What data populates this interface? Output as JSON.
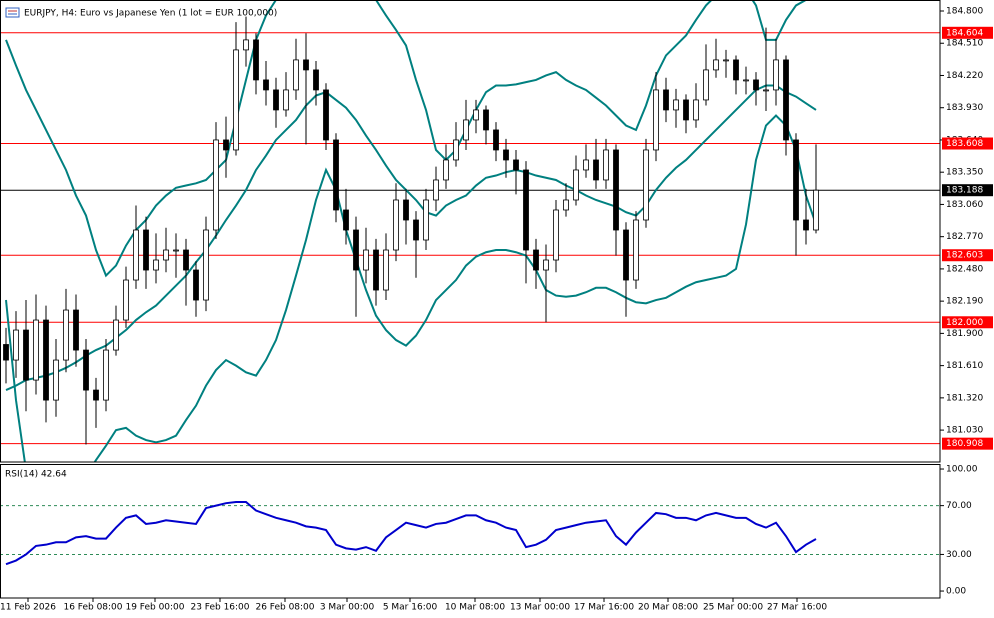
{
  "chart_data": [
    {
      "type": "candlestick",
      "title": "EURJPY, H4:  Euro vs Japanese Yen (1 lot = EUR 100,000)",
      "xlim": [
        -0.6,
        93.4
      ],
      "xticks": [
        {
          "value": 2.2,
          "label": "11 Feb 2026"
        },
        {
          "value": 8.7,
          "label": "16 Feb 08:00"
        },
        {
          "value": 14.9,
          "label": "19 Feb 00:00"
        },
        {
          "value": 21.4,
          "label": "23 Feb 16:00"
        },
        {
          "value": 27.9,
          "label": "26 Feb 08:00"
        },
        {
          "value": 34.1,
          "label": "3 Mar 00:00"
        },
        {
          "value": 40.4,
          "label": "5 Mar 16:00"
        },
        {
          "value": 46.9,
          "label": "10 Mar 08:00"
        },
        {
          "value": 53.4,
          "label": "13 Mar 00:00"
        },
        {
          "value": 59.8,
          "label": "17 Mar 16:00"
        },
        {
          "value": 66.2,
          "label": "20 Mar 08:00"
        },
        {
          "value": 72.7,
          "label": "25 Mar 00:00"
        },
        {
          "value": 79.1,
          "label": "27 Mar 16:00"
        }
      ],
      "ylim": [
        180.743,
        184.899
      ],
      "yticks": [
        {
          "value": 184.8,
          "label": "184.800"
        },
        {
          "value": 184.51,
          "label": "184.510"
        },
        {
          "value": 184.22,
          "label": "184.220"
        },
        {
          "value": 183.93,
          "label": "183.930"
        },
        {
          "value": 183.64,
          "label": "183.640"
        },
        {
          "value": 183.35,
          "label": "183.350"
        },
        {
          "value": 183.06,
          "label": "183.060"
        },
        {
          "value": 182.77,
          "label": "182.770"
        },
        {
          "value": 182.48,
          "label": "182.480"
        },
        {
          "value": 182.19,
          "label": "182.190"
        },
        {
          "value": 181.9,
          "label": "181.900"
        },
        {
          "value": 181.61,
          "label": "181.610"
        },
        {
          "value": 181.32,
          "label": "181.320"
        },
        {
          "value": 181.03,
          "label": "181.030"
        }
      ],
      "up_color": "#ffffff",
      "down_color": "#000000",
      "edge_color": "#000000",
      "open": [
        181.8,
        181.66,
        181.93,
        181.48,
        182.02,
        181.3,
        181.66,
        182.11,
        181.75,
        181.39,
        181.3,
        181.75,
        182.02,
        182.38,
        182.83,
        182.47,
        182.56,
        182.65,
        182.65,
        182.47,
        182.2,
        182.83,
        183.64,
        183.55,
        184.45,
        184.54,
        184.18,
        184.09,
        183.91,
        184.09,
        184.36,
        184.27,
        184.09,
        183.64,
        183.01,
        182.83,
        182.47,
        182.65,
        182.29,
        182.65,
        183.1,
        182.92,
        182.74,
        183.1,
        183.28,
        183.46,
        183.64,
        183.82,
        183.91,
        183.73,
        183.55,
        183.46,
        183.37,
        182.65,
        182.47,
        182.56,
        183.01,
        183.1,
        183.37,
        183.46,
        183.28,
        183.55,
        182.83,
        182.38,
        182.92,
        183.55,
        184.09,
        183.91,
        184.0,
        183.82,
        184.0,
        184.27,
        184.36,
        184.36,
        184.18,
        184.18,
        184.09,
        184.09,
        184.36,
        183.64,
        182.92,
        182.83
      ],
      "high": [
        181.95,
        182.1,
        182.2,
        182.25,
        182.15,
        181.85,
        182.3,
        182.25,
        181.85,
        181.5,
        181.85,
        182.15,
        182.5,
        183.05,
        182.95,
        182.8,
        182.85,
        182.8,
        182.75,
        182.55,
        182.95,
        183.8,
        183.85,
        184.7,
        184.75,
        184.6,
        184.35,
        184.2,
        184.25,
        184.55,
        184.6,
        184.35,
        184.15,
        183.7,
        183.2,
        182.95,
        182.85,
        182.75,
        182.8,
        183.25,
        183.2,
        183.0,
        183.2,
        183.4,
        183.6,
        183.8,
        184.0,
        184.0,
        183.95,
        183.8,
        183.65,
        183.55,
        183.45,
        182.75,
        182.7,
        183.1,
        183.25,
        183.5,
        183.6,
        183.65,
        183.65,
        183.6,
        182.9,
        183.0,
        183.65,
        184.25,
        184.2,
        184.1,
        184.05,
        184.15,
        184.5,
        184.55,
        184.45,
        184.4,
        184.3,
        184.25,
        184.65,
        184.55,
        184.4,
        183.7,
        183.2,
        183.6
      ],
      "low": [
        181.45,
        181.5,
        181.2,
        181.35,
        181.1,
        181.15,
        181.55,
        181.6,
        180.9,
        181.05,
        181.2,
        181.7,
        181.95,
        182.3,
        182.3,
        182.35,
        182.45,
        182.4,
        182.15,
        182.05,
        182.1,
        182.75,
        183.3,
        183.5,
        184.3,
        184.05,
        183.95,
        183.75,
        183.85,
        184.0,
        183.6,
        183.95,
        183.55,
        182.9,
        182.7,
        182.05,
        182.35,
        182.15,
        182.2,
        182.55,
        182.7,
        182.4,
        182.65,
        183.0,
        183.2,
        183.4,
        183.55,
        183.7,
        183.6,
        183.45,
        183.3,
        183.15,
        182.35,
        182.3,
        182.0,
        182.45,
        182.95,
        183.05,
        183.3,
        183.2,
        183.2,
        182.6,
        182.05,
        182.3,
        182.85,
        183.45,
        183.8,
        183.75,
        183.7,
        183.75,
        183.95,
        184.2,
        184.2,
        184.05,
        184.05,
        183.95,
        183.9,
        183.95,
        183.5,
        182.6,
        182.7,
        182.8
      ],
      "close": [
        181.66,
        181.93,
        181.48,
        182.02,
        181.3,
        181.66,
        182.11,
        181.75,
        181.39,
        181.3,
        181.75,
        182.02,
        182.38,
        182.83,
        182.47,
        182.56,
        182.65,
        182.65,
        182.47,
        182.2,
        182.83,
        183.64,
        183.55,
        184.45,
        184.54,
        184.18,
        184.09,
        183.91,
        184.09,
        184.36,
        184.27,
        184.09,
        183.64,
        183.01,
        182.83,
        182.47,
        182.65,
        182.29,
        182.65,
        183.1,
        182.92,
        182.74,
        183.1,
        183.28,
        183.46,
        183.64,
        183.82,
        183.91,
        183.73,
        183.55,
        183.46,
        183.37,
        182.65,
        182.47,
        182.56,
        183.01,
        183.1,
        183.37,
        183.46,
        183.28,
        183.55,
        182.83,
        182.38,
        182.92,
        183.55,
        184.09,
        183.91,
        184.0,
        183.82,
        184.0,
        184.27,
        184.36,
        184.36,
        184.18,
        184.18,
        184.09,
        184.09,
        184.36,
        183.64,
        182.92,
        182.83,
        183.188
      ],
      "bands": [
        {
          "color": "#008080",
          "values": [
            184.54,
            184.31,
            184.09,
            183.91,
            183.73,
            183.55,
            183.37,
            183.14,
            182.96,
            182.65,
            182.42,
            182.51,
            182.69,
            182.83,
            182.92,
            183.05,
            183.14,
            183.21,
            183.23,
            183.25,
            183.28,
            183.37,
            183.46,
            183.82,
            184.18,
            184.54,
            184.76,
            184.9,
            184.99,
            185.03,
            185.03,
            184.99,
            185.03,
            185.12,
            185.12,
            185.08,
            184.99,
            184.9,
            184.76,
            184.63,
            184.49,
            184.18,
            183.91,
            183.55,
            183.46,
            183.55,
            183.73,
            183.91,
            184.07,
            184.13,
            184.13,
            184.14,
            184.16,
            184.18,
            184.22,
            184.25,
            184.18,
            184.13,
            184.09,
            184.02,
            183.95,
            183.86,
            183.77,
            183.73,
            183.95,
            184.22,
            184.4,
            184.49,
            184.58,
            184.72,
            184.85,
            184.94,
            184.99,
            185.03,
            184.99,
            184.85,
            184.54,
            184.54,
            184.72,
            184.85,
            184.9,
            184.94
          ]
        },
        {
          "color": "#008080",
          "values": [
            181.39,
            181.43,
            181.48,
            181.5,
            181.52,
            181.55,
            181.59,
            181.64,
            181.7,
            181.75,
            181.79,
            181.86,
            181.93,
            182.02,
            182.09,
            182.15,
            182.24,
            182.33,
            182.42,
            182.54,
            182.65,
            182.78,
            182.92,
            183.05,
            183.19,
            183.37,
            183.5,
            183.64,
            183.73,
            183.82,
            183.95,
            184.04,
            184.07,
            184.0,
            183.93,
            183.82,
            183.68,
            183.55,
            183.41,
            183.28,
            183.19,
            183.1,
            182.99,
            182.96,
            183.05,
            183.1,
            183.14,
            183.23,
            183.3,
            183.32,
            183.35,
            183.37,
            183.35,
            183.32,
            183.3,
            183.28,
            183.23,
            183.19,
            183.14,
            183.1,
            183.07,
            183.04,
            182.99,
            182.96,
            183.05,
            183.19,
            183.3,
            183.39,
            183.46,
            183.55,
            183.64,
            183.73,
            183.82,
            183.91,
            184.0,
            184.09,
            184.13,
            184.13,
            184.07,
            184.03,
            183.97,
            183.91
          ]
        },
        {
          "color": "#008080",
          "values": [
            182.2,
            181.3,
            180.67,
            180.58,
            180.49,
            180.44,
            180.44,
            180.49,
            180.62,
            180.76,
            180.89,
            181.03,
            181.05,
            180.98,
            180.94,
            180.92,
            180.94,
            180.98,
            181.12,
            181.25,
            181.43,
            181.57,
            181.66,
            181.61,
            181.55,
            181.52,
            181.66,
            181.84,
            182.11,
            182.42,
            182.74,
            183.1,
            183.37,
            183.19,
            182.83,
            182.56,
            182.29,
            182.06,
            181.93,
            181.84,
            181.79,
            181.88,
            182.02,
            182.2,
            182.29,
            182.38,
            182.51,
            182.59,
            182.63,
            182.65,
            182.65,
            182.63,
            182.6,
            182.47,
            182.29,
            182.24,
            182.23,
            182.24,
            182.27,
            182.31,
            182.31,
            182.27,
            182.22,
            182.18,
            182.17,
            182.2,
            182.22,
            182.27,
            182.32,
            182.36,
            182.38,
            182.4,
            182.42,
            182.48,
            182.88,
            183.46,
            183.77,
            183.86,
            183.77,
            183.55,
            183.14,
            182.88
          ]
        }
      ],
      "levels": [
        {
          "value": 184.604,
          "label": "184.604",
          "color": "#ff0000"
        },
        {
          "value": 183.608,
          "label": "183.608",
          "color": "#ff0000"
        },
        {
          "value": 182.603,
          "label": "182.603",
          "color": "#ff0000"
        },
        {
          "value": 182.0,
          "label": "182.000",
          "color": "#ff0000"
        },
        {
          "value": 180.908,
          "label": "180.908",
          "color": "#ff0000"
        }
      ],
      "current": {
        "value": 183.188,
        "label": "183.188",
        "color": "#000000"
      }
    },
    {
      "type": "line",
      "title": "RSI(14) 42.64",
      "color": "#0000cc",
      "ylim": [
        -5.7,
        103.3
      ],
      "yticks": [
        {
          "value": 100,
          "label": "100.00"
        },
        {
          "value": 70,
          "label": "70.00"
        },
        {
          "value": 30,
          "label": "30.00"
        },
        {
          "value": 0,
          "label": "0.00"
        }
      ],
      "levels": [
        70,
        30
      ],
      "values": [
        22,
        25,
        30,
        37,
        38,
        40,
        40,
        44,
        45,
        43,
        43,
        52,
        60,
        62,
        55,
        56,
        58,
        57,
        56,
        55,
        68,
        70,
        72,
        73,
        73,
        66,
        63,
        60,
        58,
        56,
        53,
        52,
        50,
        38,
        35,
        34,
        36,
        33,
        44,
        50,
        56,
        54,
        52,
        55,
        56,
        59,
        62,
        62,
        58,
        56,
        52,
        50,
        36,
        38,
        42,
        50,
        52,
        54,
        56,
        57,
        58,
        45,
        38,
        48,
        56,
        64,
        63,
        60,
        60,
        58,
        62,
        64,
        62,
        60,
        60,
        55,
        52,
        56,
        45,
        32,
        38,
        42.64
      ]
    }
  ]
}
